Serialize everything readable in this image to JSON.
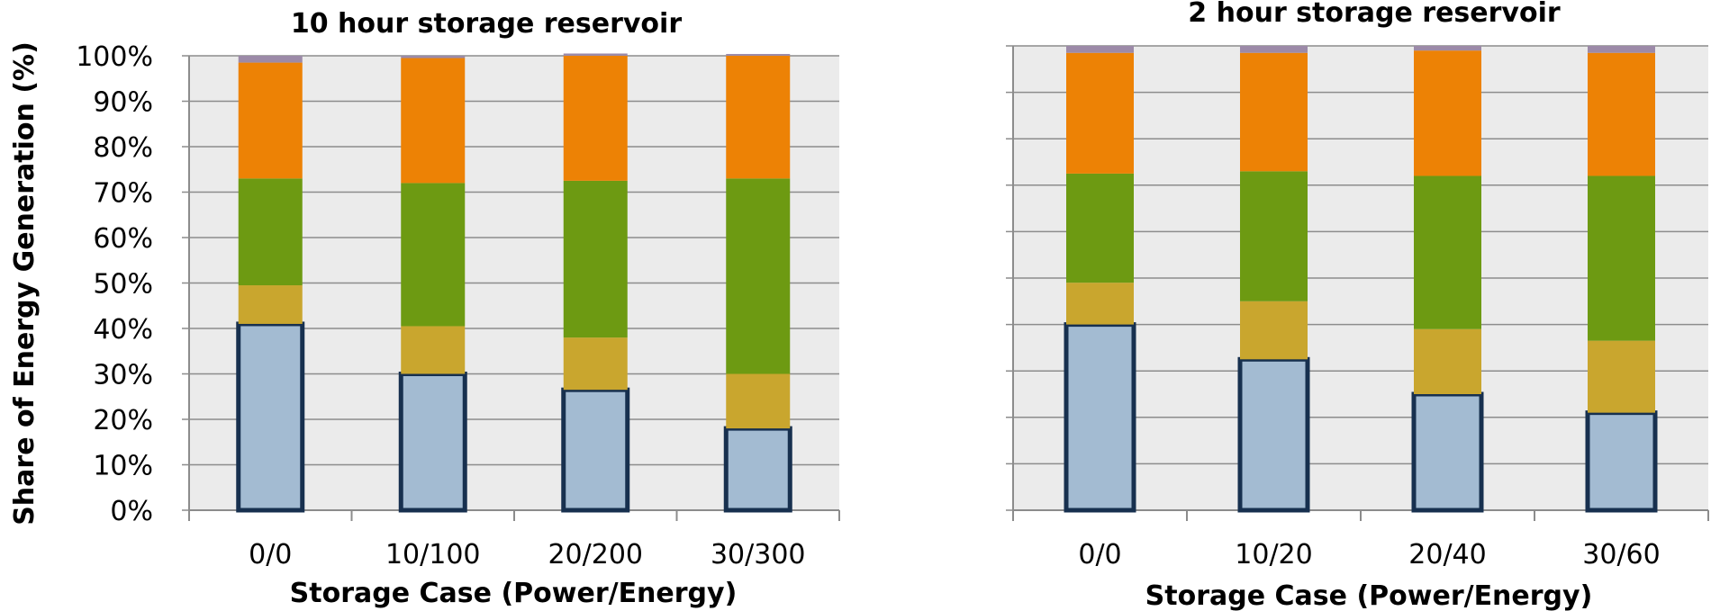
{
  "chart_data": [
    {
      "type": "bar",
      "stacked": true,
      "title": "10 hour storage reservoir",
      "xlabel": "Storage Case (Power/Energy)",
      "ylabel": "Share of Energy Generation (%)",
      "ylim": [
        0,
        100
      ],
      "yticks": [
        "0%",
        "10%",
        "20%",
        "30%",
        "40%",
        "50%",
        "60%",
        "70%",
        "80%",
        "90%",
        "100%"
      ],
      "grid": true,
      "categories": [
        "0/0",
        "10/100",
        "20/200",
        "30/300"
      ],
      "series": [
        {
          "color": "#a3bbd2",
          "outline": "#17304f",
          "values": [
            41,
            30,
            26.5,
            18
          ]
        },
        {
          "color": "#c9a62e",
          "values": [
            8.5,
            10.5,
            11.5,
            12
          ]
        },
        {
          "color": "#6d9a12",
          "values": [
            23.5,
            31.5,
            34.5,
            43
          ]
        },
        {
          "color": "#ed8205",
          "values": [
            25.5,
            27.5,
            27.5,
            27
          ]
        },
        {
          "color": "#9c8aa8",
          "values": [
            1.5,
            0.5,
            0.5,
            0.4
          ]
        }
      ]
    },
    {
      "type": "bar",
      "stacked": true,
      "title": "2 hour storage reservoir",
      "xlabel": "Storage Case (Power/Energy)",
      "ylabel": "",
      "ylim": [
        0,
        100
      ],
      "yticks": [],
      "grid": true,
      "categories": [
        "0/0",
        "10/20",
        "20/40",
        "30/60"
      ],
      "series": [
        {
          "color": "#a3bbd2",
          "outline": "#17304f",
          "values": [
            40,
            32.5,
            25,
            21
          ]
        },
        {
          "color": "#c9a62e",
          "values": [
            9,
            12.5,
            14,
            15.5
          ]
        },
        {
          "color": "#6d9a12",
          "values": [
            23.5,
            28,
            33,
            35.5
          ]
        },
        {
          "color": "#ed8205",
          "values": [
            26,
            25.5,
            27,
            26.5
          ]
        },
        {
          "color": "#9c8aa8",
          "values": [
            1.5,
            1.5,
            1,
            1.5
          ]
        }
      ]
    }
  ]
}
